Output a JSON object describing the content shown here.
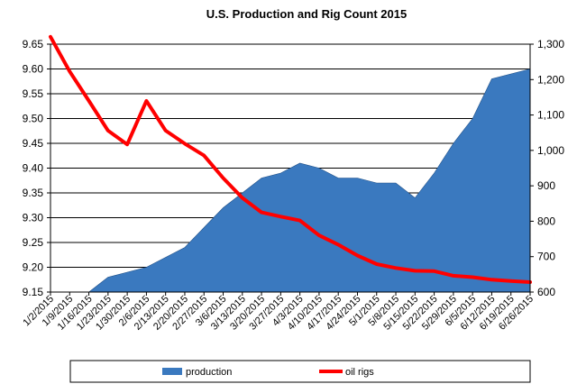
{
  "chart_data": {
    "type": "area",
    "title": "U.S. Production and Rig Count 2015",
    "xlabel": "",
    "ylabel": "",
    "categories": [
      "1/2/2015",
      "1/9/2015",
      "1/16/2015",
      "1/23/2015",
      "1/30/2015",
      "2/6/2015",
      "2/13/2015",
      "2/20/2015",
      "2/27/2015",
      "3/6/2015",
      "3/13/2015",
      "3/20/2015",
      "3/27/2015",
      "4/3/2015",
      "4/10/2015",
      "4/17/2015",
      "4/24/2015",
      "5/1/2015",
      "5/8/2015",
      "5/15/2015",
      "5/22/2015",
      "5/29/2015",
      "6/5/2015",
      "6/12/2015",
      "6/19/2015",
      "6/26/2015"
    ],
    "series": [
      {
        "name": "production",
        "type": "area",
        "axis": "left",
        "color": "#3a79bf",
        "values": [
          9.12,
          9.13,
          9.15,
          9.18,
          9.19,
          9.2,
          9.22,
          9.24,
          9.28,
          9.32,
          9.35,
          9.38,
          9.39,
          9.41,
          9.4,
          9.38,
          9.38,
          9.37,
          9.37,
          9.34,
          9.39,
          9.45,
          9.5,
          9.58,
          9.59,
          9.6
        ]
      },
      {
        "name": "oil rigs",
        "type": "line",
        "axis": "right",
        "color": "#ff0000",
        "values": [
          1321,
          1223,
          1140,
          1056,
          1017,
          1140,
          1056,
          1019,
          986,
          922,
          866,
          825,
          813,
          802,
          760,
          734,
          703,
          679,
          668,
          660,
          659,
          646,
          642,
          635,
          631,
          628
        ]
      }
    ],
    "y_left": {
      "lim": [
        9.15,
        9.65
      ],
      "ticks": [
        "9.15",
        "9.20",
        "9.25",
        "9.30",
        "9.35",
        "9.40",
        "9.45",
        "9.50",
        "9.55",
        "9.60",
        "9.65"
      ]
    },
    "y_right": {
      "lim": [
        600,
        1300
      ],
      "ticks": [
        "600",
        "700",
        "800",
        "900",
        "1,000",
        "1,100",
        "1,200",
        "1,300"
      ]
    },
    "grid": "horizontal",
    "legend_position": "bottom"
  }
}
